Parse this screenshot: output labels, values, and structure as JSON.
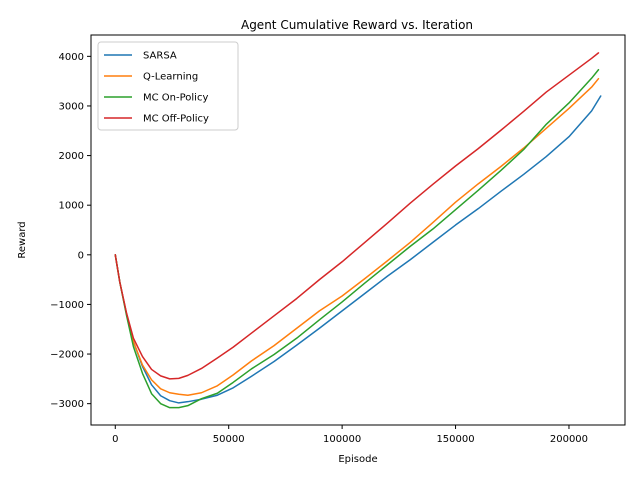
{
  "chart_data": {
    "type": "line",
    "title": "Agent Cumulative Reward vs. Iteration",
    "xlabel": "Episode",
    "ylabel": "Reward",
    "xlim": [
      -10700,
      224700
    ],
    "ylim": [
      -3430,
      4430
    ],
    "xticks": [
      0,
      50000,
      100000,
      150000,
      200000
    ],
    "yticks": [
      -3000,
      -2000,
      -1000,
      0,
      1000,
      2000,
      3000,
      4000
    ],
    "legend_position": "top-left",
    "grid": false,
    "series": [
      {
        "name": "SARSA",
        "color": "#1f77b4",
        "x": [
          0,
          2000,
          5000,
          8000,
          12000,
          16000,
          20000,
          24000,
          28000,
          32000,
          38000,
          45000,
          52000,
          60000,
          70000,
          80000,
          90000,
          100000,
          110000,
          120000,
          130000,
          140000,
          150000,
          160000,
          170000,
          180000,
          190000,
          200000,
          210000,
          214000
        ],
        "y": [
          0,
          -550,
          -1200,
          -1750,
          -2250,
          -2620,
          -2840,
          -2940,
          -2985,
          -2960,
          -2910,
          -2830,
          -2680,
          -2450,
          -2150,
          -1820,
          -1480,
          -1130,
          -780,
          -430,
          -100,
          250,
          600,
          930,
          1280,
          1620,
          1980,
          2380,
          2900,
          3200
        ]
      },
      {
        "name": "Q-Learning",
        "color": "#ff7f0e",
        "x": [
          0,
          2000,
          5000,
          8000,
          12000,
          16000,
          20000,
          24000,
          28000,
          32000,
          38000,
          45000,
          52000,
          60000,
          70000,
          80000,
          90000,
          100000,
          110000,
          120000,
          130000,
          140000,
          150000,
          160000,
          170000,
          180000,
          190000,
          200000,
          210000,
          213000
        ],
        "y": [
          0,
          -550,
          -1200,
          -1750,
          -2220,
          -2520,
          -2700,
          -2780,
          -2810,
          -2830,
          -2780,
          -2640,
          -2420,
          -2140,
          -1830,
          -1480,
          -1130,
          -830,
          -480,
          -120,
          250,
          650,
          1060,
          1430,
          1780,
          2150,
          2550,
          2950,
          3380,
          3550
        ]
      },
      {
        "name": "MC On-Policy",
        "color": "#2ca02c",
        "x": [
          0,
          2000,
          5000,
          8000,
          12000,
          16000,
          20000,
          24000,
          28000,
          32000,
          38000,
          45000,
          52000,
          60000,
          70000,
          80000,
          90000,
          100000,
          110000,
          120000,
          130000,
          140000,
          150000,
          160000,
          170000,
          180000,
          190000,
          200000,
          210000,
          213000
        ],
        "y": [
          0,
          -550,
          -1230,
          -1850,
          -2390,
          -2800,
          -3000,
          -3080,
          -3080,
          -3040,
          -2900,
          -2790,
          -2570,
          -2300,
          -2010,
          -1680,
          -1310,
          -950,
          -570,
          -200,
          170,
          520,
          910,
          1300,
          1700,
          2120,
          2630,
          3060,
          3560,
          3730
        ]
      },
      {
        "name": "MC Off-Policy",
        "color": "#d62728",
        "x": [
          0,
          2000,
          5000,
          8000,
          12000,
          16000,
          20000,
          24000,
          28000,
          32000,
          38000,
          45000,
          52000,
          60000,
          70000,
          80000,
          90000,
          100000,
          110000,
          120000,
          130000,
          140000,
          150000,
          160000,
          170000,
          180000,
          190000,
          200000,
          210000,
          213000
        ],
        "y": [
          0,
          -550,
          -1180,
          -1680,
          -2050,
          -2310,
          -2440,
          -2500,
          -2490,
          -2430,
          -2290,
          -2080,
          -1860,
          -1580,
          -1230,
          -880,
          -500,
          -140,
          250,
          640,
          1040,
          1420,
          1790,
          2140,
          2510,
          2890,
          3280,
          3620,
          3960,
          4070
        ]
      }
    ]
  }
}
